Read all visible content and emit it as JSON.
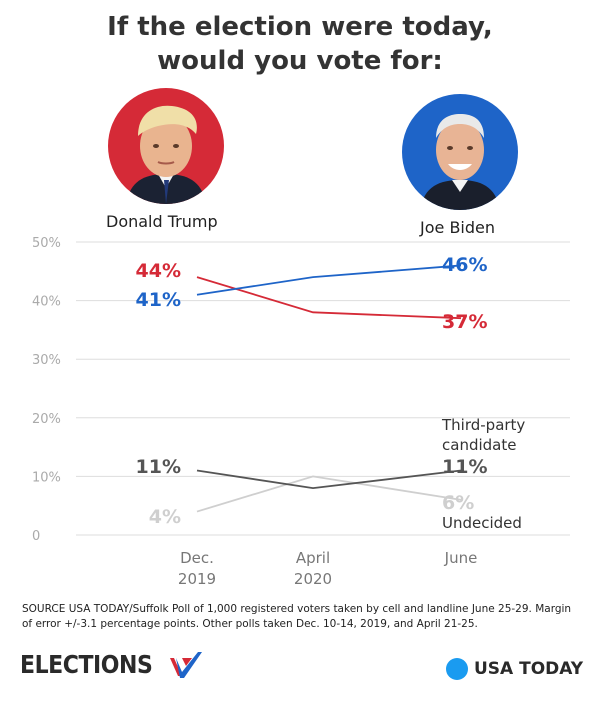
{
  "title_line1": "If the election were today,",
  "title_line2": "would you vote for:",
  "candidates": {
    "left": {
      "name": "Donald Trump",
      "bg_color": "#d52a37"
    },
    "right": {
      "name": "Joe Biden",
      "bg_color": "#1e64c8"
    }
  },
  "source": "SOURCE USA TODAY/Suffolk Poll of 1,000 registered voters taken by cell and landline June 25-29. Margin of error +/-3.1 percentage points. Other polls taken Dec. 10-14, 2019, and April 21-25.",
  "footer": {
    "left_logo_text": "ELECTIONS",
    "right_logo_text": "USA TODAY"
  },
  "chart_data": {
    "type": "line",
    "x": [
      "Dec. 2019",
      "April 2020",
      "June"
    ],
    "x_tick_lines": [
      [
        "Dec.",
        "2019"
      ],
      [
        "April",
        "2020"
      ],
      [
        "June"
      ]
    ],
    "ylim": [
      0,
      50
    ],
    "y_ticks": [
      0,
      10,
      20,
      30,
      40,
      50
    ],
    "y_tick_labels": [
      "0",
      "10%",
      "20%",
      "30%",
      "40%",
      "50%"
    ],
    "grid": true,
    "series": [
      {
        "name": "Donald Trump",
        "color": "#d52a37",
        "values": [
          44,
          38,
          37
        ],
        "start_label": "44%",
        "end_label": "37%"
      },
      {
        "name": "Joe Biden",
        "color": "#1e64c8",
        "values": [
          41,
          44,
          46
        ],
        "start_label": "41%",
        "end_label": "46%"
      },
      {
        "name": "Third-party candidate",
        "name_lines": [
          "Third-party",
          "candidate"
        ],
        "color": "#555555",
        "values": [
          11,
          8,
          11
        ],
        "start_label": "11%",
        "end_label": "11%"
      },
      {
        "name": "Undecided",
        "name_lines": [
          "Undecided"
        ],
        "color": "#cfcfcf",
        "values": [
          4,
          10,
          6
        ],
        "start_label": "4%",
        "end_label": "6%"
      }
    ]
  }
}
